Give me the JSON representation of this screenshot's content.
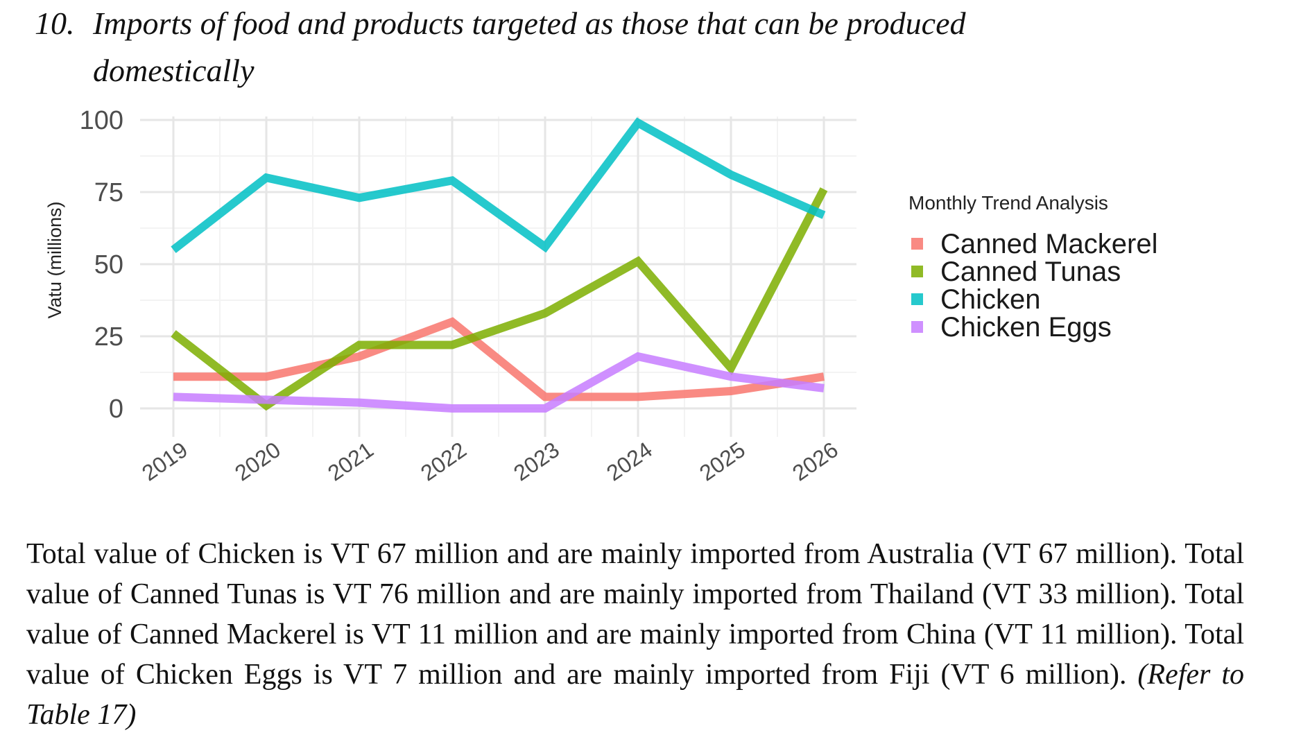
{
  "heading": {
    "number": "10.",
    "line1": "Imports of food and products targeted as those that can be produced",
    "line2": "domestically"
  },
  "chart_data": {
    "type": "line",
    "x": [
      "2019",
      "2020",
      "2021",
      "2022",
      "2023",
      "2024",
      "2025",
      "2026"
    ],
    "ylabel": "Vatu (millions)",
    "xlabel": "",
    "ylim": [
      0,
      100
    ],
    "yticks": [
      0,
      25,
      50,
      75,
      100
    ],
    "grid": true,
    "legend": {
      "title": "Monthly Trend Analysis",
      "position": "right"
    },
    "series": [
      {
        "name": "Canned Mackerel",
        "color": "#F8766D",
        "values": [
          11,
          11,
          18,
          30,
          4,
          4,
          6,
          11
        ]
      },
      {
        "name": "Canned Tunas",
        "color": "#7CAE00",
        "values": [
          26,
          1,
          22,
          22,
          33,
          51,
          14,
          76
        ]
      },
      {
        "name": "Chicken",
        "color": "#00BFC4",
        "values": [
          55,
          80,
          73,
          79,
          56,
          99,
          81,
          67
        ]
      },
      {
        "name": "Chicken Eggs",
        "color": "#C77CFF",
        "values": [
          4,
          3,
          2,
          0,
          0,
          18,
          11,
          7
        ]
      }
    ]
  },
  "paragraph": {
    "text": "Total value of Chicken is VT 67 million and are mainly imported from Australia (VT 67 million). Total value of Canned Tunas is VT 76 million and are mainly imported from Thailand (VT 33 million). Total value of Canned Mackerel is VT 11 million and are mainly imported from China (VT 11 million). Total value of Chicken Eggs is VT 7 million and are mainly imported from Fiji (VT 6 million).",
    "reference": "(Refer to Table 17)"
  }
}
